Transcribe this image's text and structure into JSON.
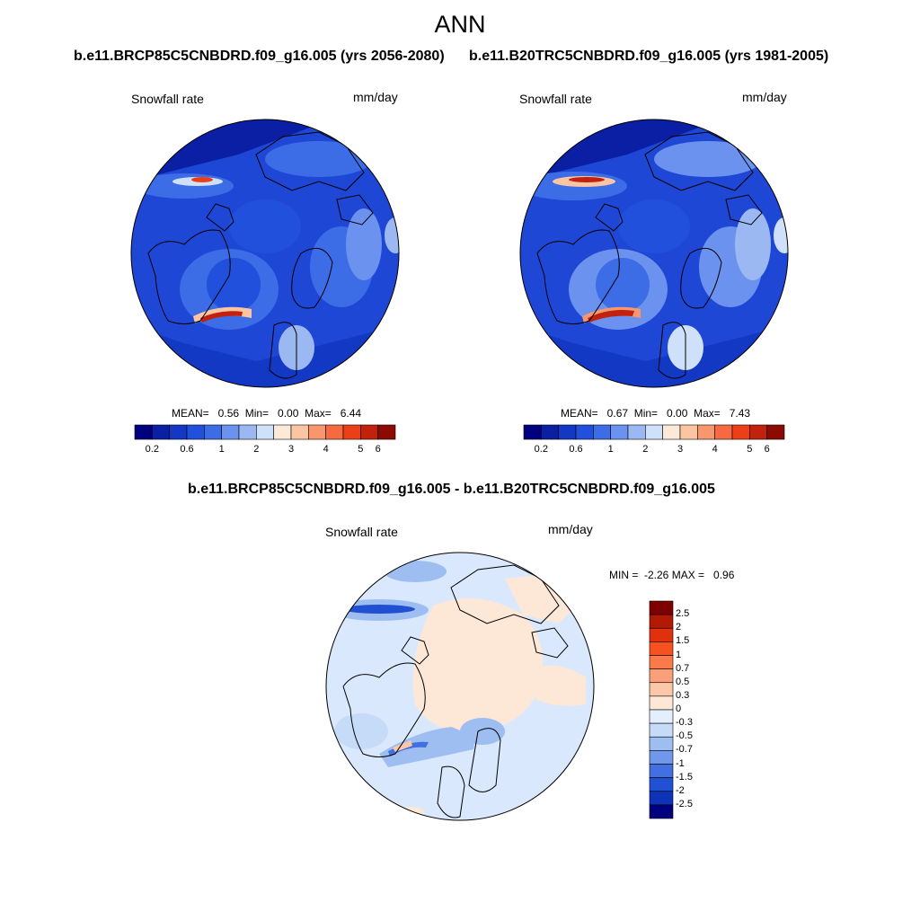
{
  "title": "ANN",
  "panels": {
    "top_left": {
      "case": "b.e11.BRCP85C5CNBDRD.f09_g16.005 (yrs 2056-2080)",
      "variable": "Snowfall rate",
      "units": "mm/day",
      "stats": "MEAN=   0.56  Min=   0.00  Max=   6.44"
    },
    "top_right": {
      "case": "b.e11.B20TRC5CNBDRD.f09_g16.005 (yrs 1981-2005)",
      "variable": "Snowfall rate",
      "units": "mm/day",
      "stats": "MEAN=   0.67  Min=   0.00  Max=   7.43"
    },
    "bottom": {
      "case": "b.e11.BRCP85C5CNBDRD.f09_g16.005 - b.e11.B20TRC5CNBDRD.f09_g16.005",
      "variable": "Snowfall rate",
      "units": "mm/day",
      "stats": "MIN =  -2.26 MAX =   0.96"
    }
  },
  "colorbar_abs": {
    "ticks": [
      "0.2",
      "0.6",
      "1",
      "2",
      "3",
      "4",
      "5",
      "6"
    ],
    "colors": [
      "#00007f",
      "#0a1fa3",
      "#1338c4",
      "#2150dd",
      "#3c6de6",
      "#6a92ee",
      "#9cb8f3",
      "#cfe0fa",
      "#fde9d8",
      "#fbc5a4",
      "#f8976d",
      "#f66a42",
      "#ec3f17",
      "#c2210e",
      "#8b0b04"
    ]
  },
  "colorbar_diff": {
    "labels": [
      "2.5",
      "2",
      "1.5",
      "1",
      "0.7",
      "0.5",
      "0.3",
      "0",
      "-0.3",
      "-0.5",
      "-0.7",
      "-1",
      "-1.5",
      "-2",
      "-2.5"
    ],
    "colors": [
      "#7f0000",
      "#b21a05",
      "#e1300e",
      "#f8501e",
      "#fa7a4a",
      "#fb9f78",
      "#fcc7a8",
      "#fde8d8",
      "#e3efff",
      "#c6dbf8",
      "#9ebef2",
      "#6f97ea",
      "#4370e0",
      "#2250d3",
      "#0e33b8",
      "#00007f"
    ]
  }
}
